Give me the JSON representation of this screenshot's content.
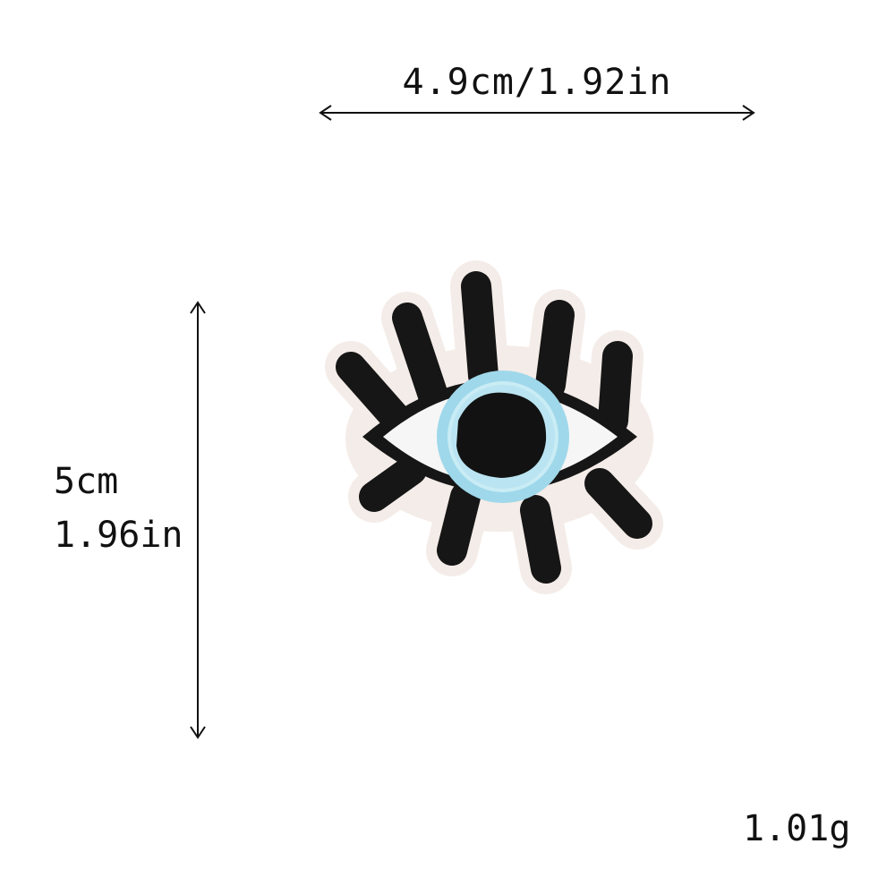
{
  "dimensions": {
    "width_text": "4.9cm/1.92in",
    "height_cm_text": "5cm",
    "height_in_text": "1.96in",
    "weight_text": "1.01g"
  },
  "product": {
    "icon": "eye-patch-icon",
    "colors": {
      "lash": "#161616",
      "backing": "#f4ece8",
      "sclera": "#f6f6f6",
      "iris": "#9fd8ea",
      "pupil": "#121212"
    }
  }
}
